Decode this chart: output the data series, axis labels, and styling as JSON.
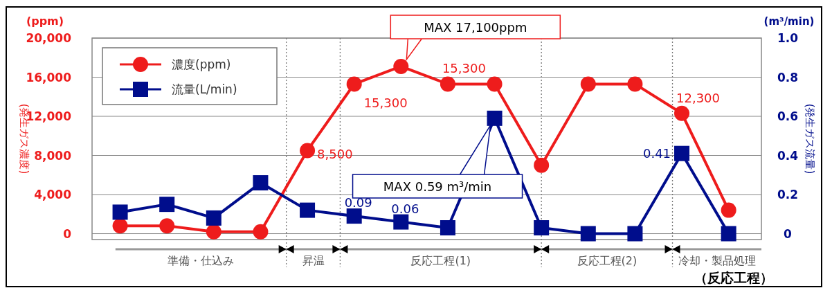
{
  "chart_data": {
    "type": "line",
    "categories": [
      null,
      null,
      null,
      null,
      null,
      null,
      null,
      null,
      null,
      null,
      null,
      null,
      null,
      null
    ],
    "series": [
      {
        "name": "濃度(ppm)",
        "color": "#ee1c1c",
        "marker": "circle",
        "values": [
          800,
          800,
          200,
          200,
          8500,
          15300,
          17100,
          15300,
          15300,
          7000,
          15300,
          15300,
          12300,
          2400
        ],
        "value_labels": [
          null,
          null,
          null,
          null,
          "8,500",
          "15,300",
          null,
          "15,300",
          null,
          null,
          null,
          null,
          "12,300",
          null
        ]
      },
      {
        "name": "流量(L/min)",
        "color": "#000d8c",
        "marker": "square",
        "axis": "y2",
        "values": [
          0.11,
          0.15,
          0.08,
          0.26,
          0.12,
          0.09,
          0.06,
          0.03,
          0.59,
          0.03,
          0,
          0,
          0.41,
          0
        ],
        "value_labels": [
          null,
          null,
          null,
          null,
          null,
          "0.09",
          "0.06",
          null,
          null,
          null,
          null,
          null,
          "0.41",
          null
        ]
      }
    ],
    "ylabel": "(発生ガス濃度)",
    "y2label": "(発生ガス流量)",
    "xlabel": "（反応工程）",
    "ylim": [
      -600,
      20000
    ],
    "yticks": [
      {
        "value": 0,
        "label": "0"
      },
      {
        "value": 4000,
        "label": "4,000"
      },
      {
        "value": 8000,
        "label": "8,000"
      },
      {
        "value": 12000,
        "label": "12,000"
      },
      {
        "value": 16000,
        "label": "16,000"
      },
      {
        "value": 20000,
        "label": "20,000"
      }
    ],
    "y2lim": [
      -0.03,
      1.0
    ],
    "y2ticks": [
      0,
      0.2,
      0.4,
      0.6,
      0.8,
      {
        "value": 1.0,
        "label": "1.0"
      }
    ],
    "annotations": [
      "MAX 17,100ppm",
      "MAX 0.59 m³/min",
      "(ppm)",
      "(m³/min)",
      "準備・仕込み",
      "昇温",
      "反応工程(1)",
      "反応工程(2)",
      "冷却・製品処理"
    ],
    "grid": "y",
    "legend": "top left",
    "line_style": "solid"
  }
}
